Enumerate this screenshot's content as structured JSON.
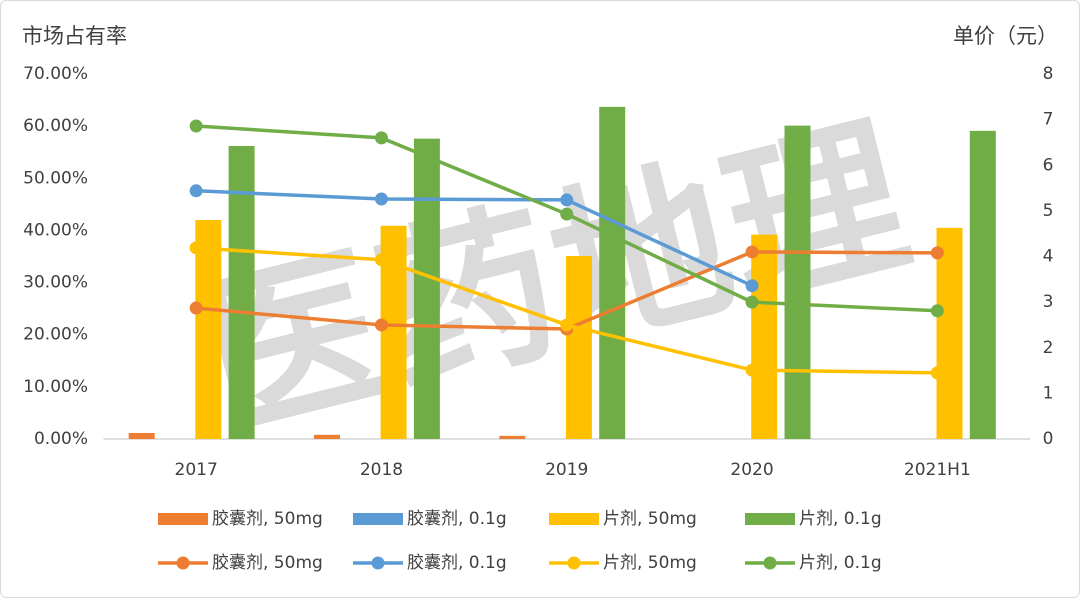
{
  "chart_data": {
    "type": "combo",
    "watermark": "医药地理",
    "y_title": "市场占有率",
    "y2_title": "单价（元）",
    "categories": [
      "2017",
      "2018",
      "2019",
      "2020",
      "2021H1"
    ],
    "ylim": [
      0,
      70
    ],
    "yticks": [
      {
        "value": 0,
        "label": "0.00%"
      },
      {
        "value": 10,
        "label": "10.00%"
      },
      {
        "value": 20,
        "label": "20.00%"
      },
      {
        "value": 30,
        "label": "30.00%"
      },
      {
        "value": 40,
        "label": "40.00%"
      },
      {
        "value": 50,
        "label": "50.00%"
      },
      {
        "value": 60,
        "label": "60.00%"
      },
      {
        "value": 70,
        "label": "70.00%"
      }
    ],
    "y2lim": [
      0,
      8
    ],
    "y2ticks": [
      0,
      1,
      2,
      3,
      4,
      5,
      6,
      7,
      8
    ],
    "grid": false,
    "series": [
      {
        "name": "胶囊剂, 50mg",
        "type": "bar",
        "color": "#ed7d31",
        "values": [
          1.15,
          0.8,
          0.6,
          null,
          null
        ]
      },
      {
        "name": "胶囊剂, 0.1g",
        "type": "bar",
        "color": "#5b9bd5",
        "values": [
          null,
          null,
          null,
          null,
          null
        ]
      },
      {
        "name": "片剂, 50mg",
        "type": "bar",
        "color": "#ffc000",
        "values": [
          42.0,
          40.9,
          35.1,
          39.2,
          40.5
        ]
      },
      {
        "name": "片剂, 0.1g",
        "type": "bar",
        "color": "#70ad47",
        "values": [
          56.2,
          57.6,
          63.7,
          60.1,
          59.1
        ]
      },
      {
        "name": "胶囊剂, 50mg",
        "type": "line",
        "axis": "y2",
        "color": "#ed7d31",
        "values": [
          2.87,
          2.5,
          2.41,
          4.1,
          4.08
        ]
      },
      {
        "name": "胶囊剂, 0.1g",
        "type": "line",
        "axis": "y2",
        "color": "#5b9bd5",
        "values": [
          5.44,
          5.26,
          5.24,
          3.36,
          null
        ]
      },
      {
        "name": "片剂, 50mg",
        "type": "line",
        "axis": "y2",
        "color": "#ffc000",
        "values": [
          4.19,
          3.93,
          2.5,
          1.51,
          1.45
        ]
      },
      {
        "name": "片剂, 0.1g",
        "type": "line",
        "axis": "y2",
        "color": "#70ad47",
        "values": [
          6.86,
          6.6,
          4.93,
          3.0,
          2.81
        ]
      }
    ]
  }
}
